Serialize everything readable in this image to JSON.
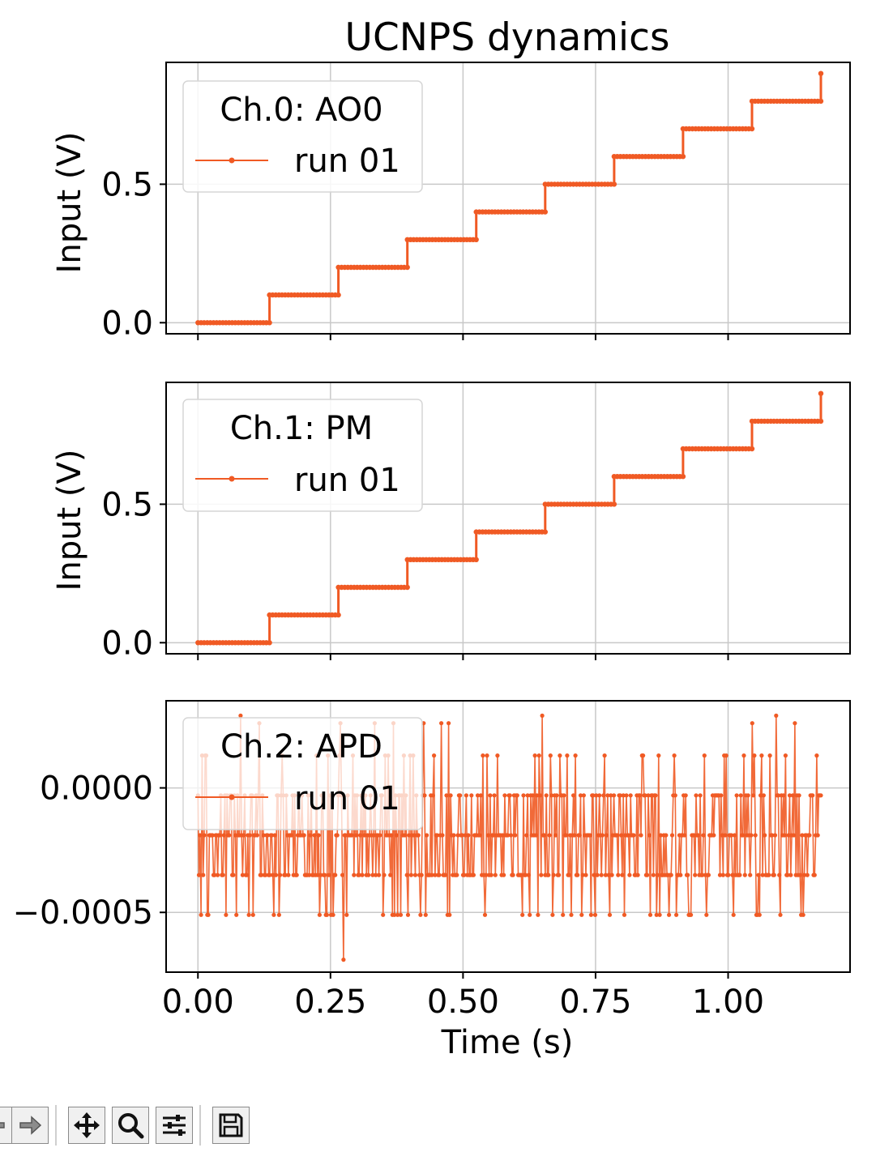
{
  "figure": {
    "title": "UCNPS dynamics"
  },
  "chart_data": [
    {
      "type": "line",
      "panel": "Ch.0: AO0",
      "legend_title": "Ch.0: AO0",
      "legend_placement": "upper-left",
      "ylabel": "Input (V)",
      "xlabel": "",
      "xlim": [
        -0.06,
        1.23
      ],
      "ylim": [
        -0.04,
        0.94
      ],
      "yticks": [
        0.0,
        0.5
      ],
      "ytick_labels": [
        "0.0",
        "0.5"
      ],
      "xticks": [
        0.0,
        0.25,
        0.5,
        0.75,
        1.0
      ],
      "grid": true,
      "series": [
        {
          "name": "run 01",
          "color": "#f05a24",
          "marker": "dot",
          "x": [
            0.0,
            0.135,
            0.135,
            0.265,
            0.265,
            0.395,
            0.395,
            0.525,
            0.525,
            0.655,
            0.655,
            0.785,
            0.785,
            0.915,
            0.915,
            1.045,
            1.045,
            1.175,
            1.175
          ],
          "y": [
            0.0,
            0.0,
            0.1,
            0.1,
            0.2,
            0.2,
            0.3,
            0.3,
            0.4,
            0.4,
            0.5,
            0.5,
            0.6,
            0.6,
            0.7,
            0.7,
            0.8,
            0.8,
            0.9
          ]
        }
      ]
    },
    {
      "type": "line",
      "panel": "Ch.1: PM",
      "legend_title": "Ch.1: PM",
      "legend_placement": "upper-left",
      "ylabel": "Input (V)",
      "xlabel": "",
      "xlim": [
        -0.06,
        1.23
      ],
      "ylim": [
        -0.04,
        0.94
      ],
      "yticks": [
        0.0,
        0.5
      ],
      "ytick_labels": [
        "0.0",
        "0.5"
      ],
      "xticks": [
        0.0,
        0.25,
        0.5,
        0.75,
        1.0
      ],
      "grid": true,
      "series": [
        {
          "name": "run 01",
          "color": "#f05a24",
          "marker": "dot",
          "x": [
            0.0,
            0.135,
            0.135,
            0.265,
            0.265,
            0.395,
            0.395,
            0.525,
            0.525,
            0.655,
            0.655,
            0.785,
            0.785,
            0.915,
            0.915,
            1.045,
            1.045,
            1.175,
            1.175
          ],
          "y": [
            0.0,
            0.0,
            0.1,
            0.1,
            0.2,
            0.2,
            0.3,
            0.3,
            0.4,
            0.4,
            0.5,
            0.5,
            0.6,
            0.6,
            0.7,
            0.7,
            0.8,
            0.8,
            0.9
          ]
        }
      ]
    },
    {
      "type": "line",
      "panel": "Ch.2: APD",
      "legend_title": "Ch.2: APD",
      "legend_placement": "upper-left",
      "ylabel": "",
      "xlabel": "Time (s)",
      "xlim": [
        -0.06,
        1.23
      ],
      "ylim": [
        -0.00074,
        0.00035
      ],
      "yticks": [
        0.0,
        -0.0005
      ],
      "ytick_labels": [
        "0.0000",
        "−0.0005"
      ],
      "xticks": [
        0.0,
        0.25,
        0.5,
        0.75,
        1.0
      ],
      "xtick_labels": [
        "0.00",
        "0.25",
        "0.50",
        "0.75",
        "1.00"
      ],
      "grid": true,
      "noise_levels": [
        0.00026,
        0.00013,
        -3e-05,
        -0.00019,
        -0.00035,
        -0.00051
      ],
      "series": [
        {
          "name": "run 01",
          "color": "#f05a24",
          "marker": "dot",
          "x_range": [
            0.0,
            1.175
          ],
          "points": 600,
          "y_min": -0.00069,
          "y_max": 0.00029,
          "noise_seed": 7
        }
      ]
    }
  ],
  "toolbar": {
    "buttons": [
      {
        "name": "back-icon"
      },
      {
        "name": "forward-icon"
      },
      {
        "name": "pan-icon"
      },
      {
        "name": "zoom-icon"
      },
      {
        "name": "configure-subplots-icon"
      },
      {
        "name": "save-icon"
      }
    ]
  }
}
